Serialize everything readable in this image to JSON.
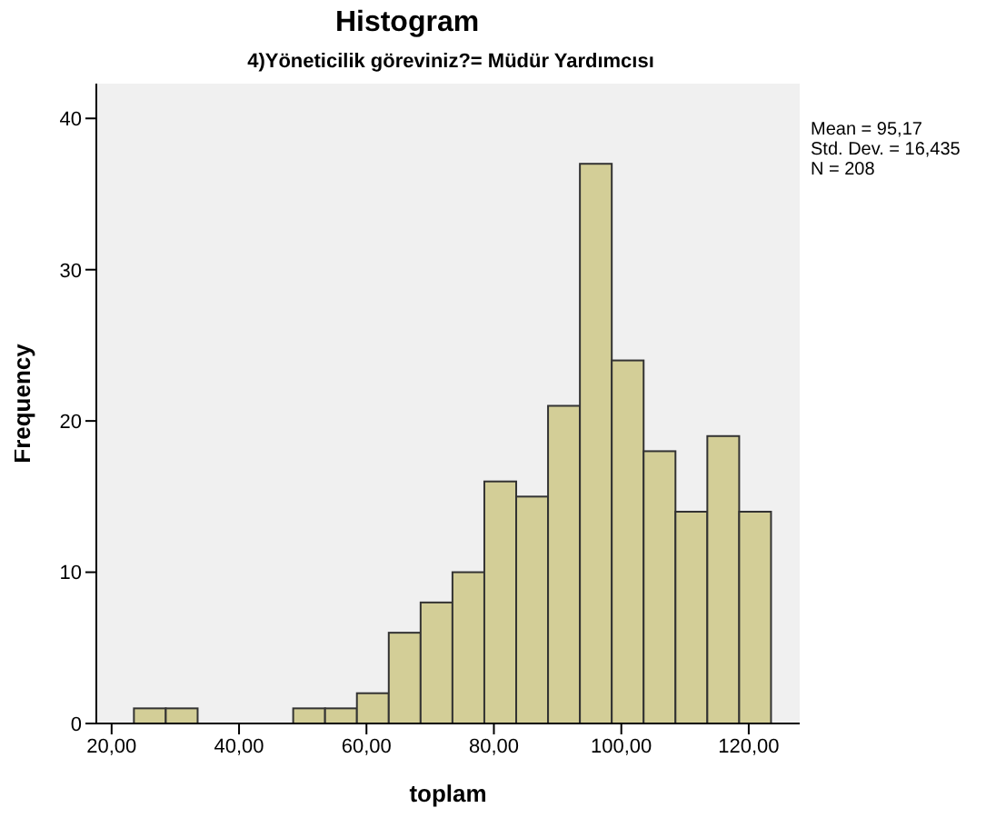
{
  "chart_data": {
    "type": "histogram",
    "title": "Histogram",
    "subtitle": "4)Yöneticilik göreviniz?= Müdür Yardımcısı",
    "xlabel": "toplam",
    "ylabel": "Frequency",
    "bins": [
      23.5,
      28.5,
      33.5,
      38.5,
      43.5,
      48.5,
      53.5,
      58.5,
      63.5,
      68.5,
      73.5,
      78.5,
      83.5,
      88.5,
      93.5,
      98.5,
      103.5,
      108.5,
      113.5,
      118.5,
      123.5
    ],
    "values": [
      1,
      1,
      0,
      0,
      0,
      1,
      1,
      2,
      6,
      8,
      10,
      16,
      15,
      21,
      37,
      24,
      18,
      14,
      19,
      14
    ],
    "color": "#d3ce97",
    "xlim": [
      17.6,
      128
    ],
    "ylim": [
      0,
      42.3
    ],
    "xticks": [
      {
        "value": 20,
        "label": "20,00"
      },
      {
        "value": 40,
        "label": "40,00"
      },
      {
        "value": 60,
        "label": "60,00"
      },
      {
        "value": 80,
        "label": "80,00"
      },
      {
        "value": 100,
        "label": "100,00"
      },
      {
        "value": 120,
        "label": "120,00"
      }
    ],
    "yticks": [
      0,
      10,
      20,
      30,
      40
    ],
    "grid": false,
    "annotations": [
      "Mean = 95,17",
      "Std. Dev. = 16,435",
      "N = 208"
    ]
  }
}
